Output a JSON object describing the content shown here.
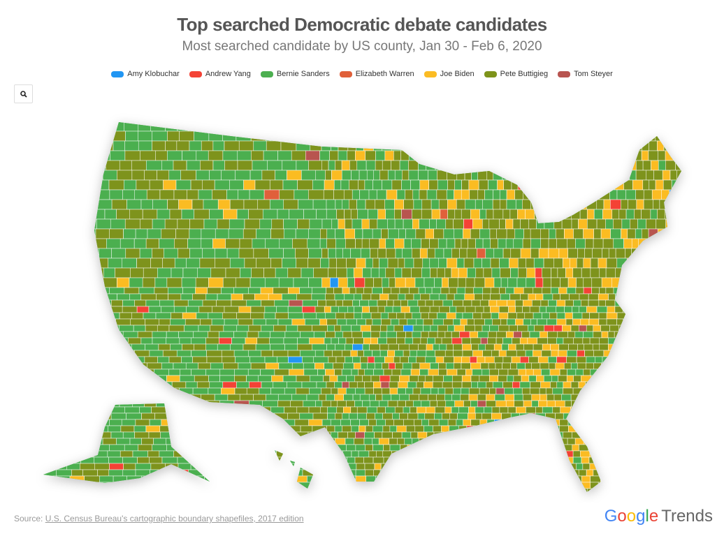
{
  "title": "Top searched Democratic debate candidates",
  "subtitle": "Most searched candidate by US county, Jan 30 - Feb 6, 2020",
  "legend": [
    {
      "label": "Amy Klobuchar",
      "color": "#2196f3"
    },
    {
      "label": "Andrew Yang",
      "color": "#f44336"
    },
    {
      "label": "Bernie Sanders",
      "color": "#4caf50"
    },
    {
      "label": "Elizabeth Warren",
      "color": "#e0603a"
    },
    {
      "label": "Joe Biden",
      "color": "#fbbc24"
    },
    {
      "label": "Pete Buttigieg",
      "color": "#7e931a"
    },
    {
      "label": "Tom Steyer",
      "color": "#b85450"
    }
  ],
  "zoom_icon": "search-icon",
  "source": {
    "prefix": "Source: ",
    "link": "U.S. Census Bureau's cartographic boundary shapefiles, 2017 edition"
  },
  "brand": {
    "google": "Google",
    "trends": "Trends"
  }
}
